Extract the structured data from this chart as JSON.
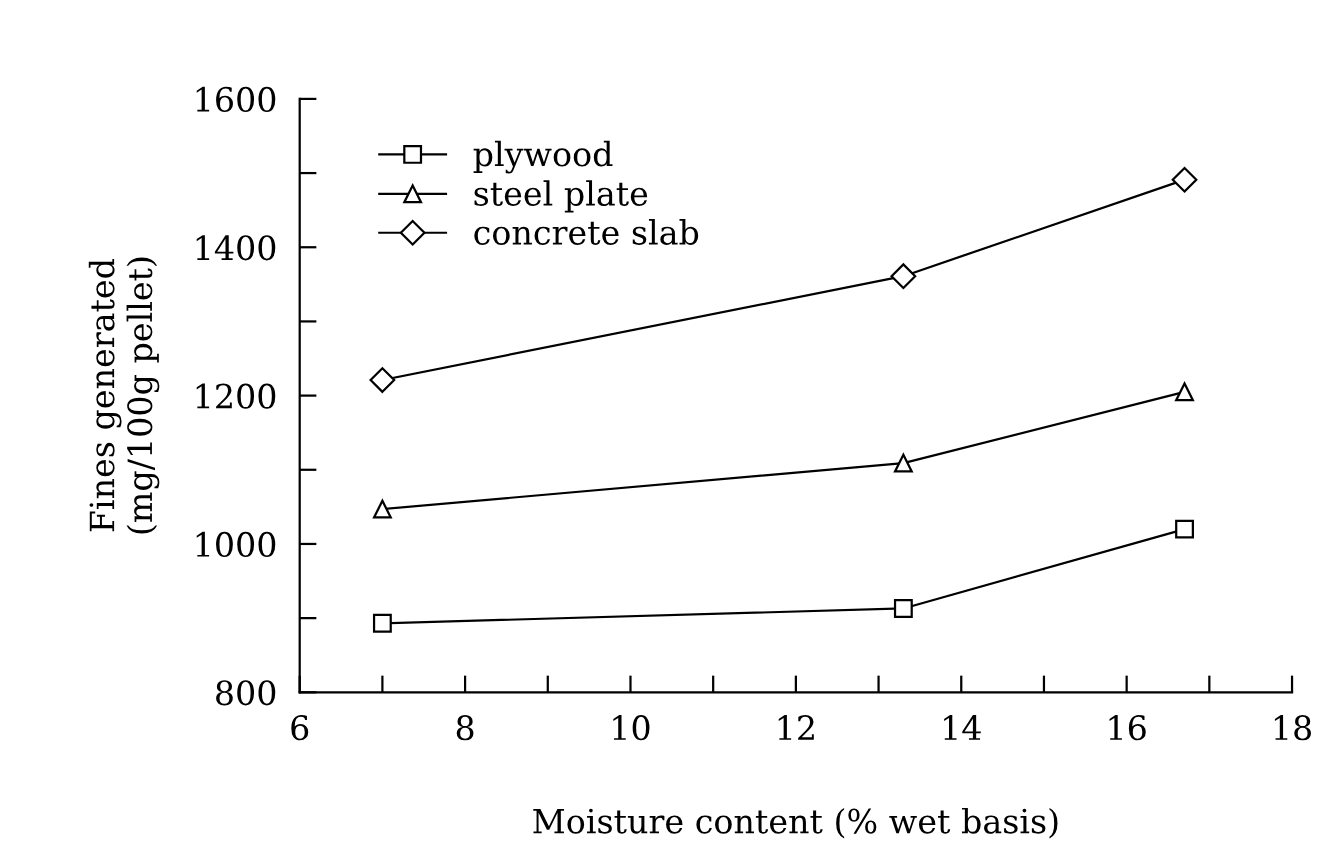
{
  "chart_data": {
    "type": "line",
    "xlabel": "Moisture content (% wet basis)",
    "ylabel": "Fines generated\n(mg/100g pellet)",
    "x": [
      7.0,
      13.3,
      16.7
    ],
    "series": [
      {
        "name": "plywood",
        "color": "#000000",
        "values": [
          893,
          913,
          1020
        ],
        "marker": "square"
      },
      {
        "name": "steel plate",
        "color": "#000000",
        "values": [
          1047,
          1109,
          1205
        ],
        "marker": "triangle"
      },
      {
        "name": "concrete slab",
        "color": "#000000",
        "values": [
          1221,
          1361,
          1491
        ],
        "marker": "diamond"
      }
    ],
    "xlim": [
      6,
      18
    ],
    "xticks": [
      6,
      {
        "value": 7,
        "label": null
      },
      8,
      {
        "value": 9,
        "label": null
      },
      10,
      {
        "value": 11,
        "label": null
      },
      12,
      {
        "value": 13,
        "label": null
      },
      14,
      {
        "value": 15,
        "label": null
      },
      16,
      {
        "value": 17,
        "label": null
      },
      18
    ],
    "ylim": [
      800,
      1600
    ],
    "yticks": [
      800,
      {
        "value": 900,
        "label": null
      },
      1000,
      {
        "value": 1100,
        "label": null
      },
      1200,
      {
        "value": 1300,
        "label": null
      },
      1400,
      {
        "value": 1500,
        "label": null
      },
      1600
    ],
    "grid": false,
    "legend": "top left",
    "line_style": "solid"
  }
}
